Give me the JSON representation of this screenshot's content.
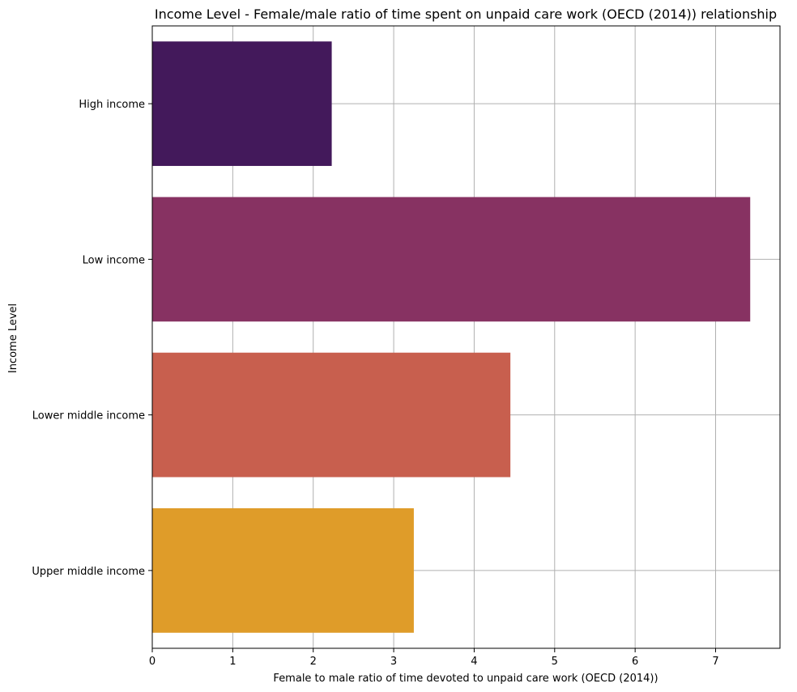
{
  "chart_data": {
    "type": "bar",
    "orientation": "horizontal",
    "title": "Income Level - Female/male ratio of time spent on unpaid care work (OECD (2014)) relationship",
    "xlabel": "Female to male ratio of time devoted to unpaid care work (OECD (2014))",
    "ylabel": "Income Level",
    "categories": [
      "High income",
      "Low income",
      "Lower middle income",
      "Upper middle income"
    ],
    "values": [
      2.23,
      7.43,
      4.45,
      3.25
    ],
    "colors": [
      "#43195b",
      "#873262",
      "#c85f4e",
      "#df9c29"
    ],
    "xlim": [
      0,
      7.8
    ],
    "xticks": [
      0,
      1,
      2,
      3,
      4,
      5,
      6,
      7
    ],
    "grid": true
  }
}
